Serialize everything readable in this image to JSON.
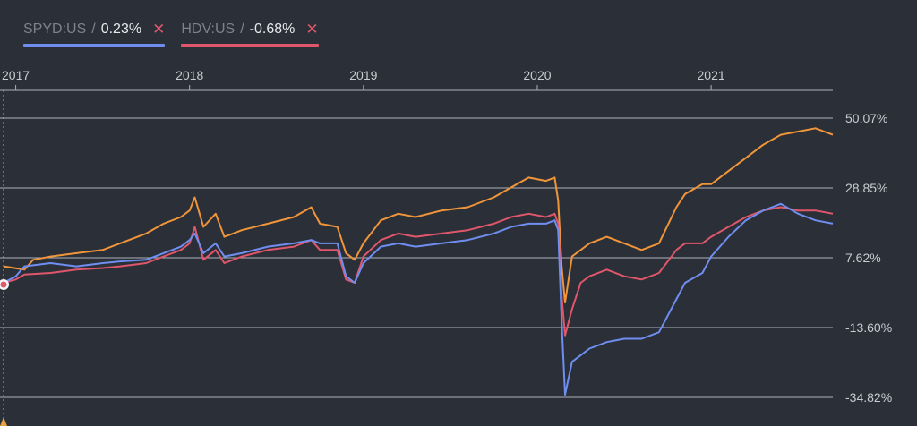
{
  "legend": [
    {
      "ticker": "SPYD:US",
      "separator": "/",
      "change": "0.23%",
      "color": "#6f8ef0",
      "remove_icon": "close-icon"
    },
    {
      "ticker": "HDV:US",
      "separator": "/",
      "change": "-0.68%",
      "color": "#e0566b",
      "remove_icon": "close-icon"
    }
  ],
  "chart_data": {
    "type": "line",
    "x_tick_labels": [
      "2017",
      "2018",
      "2019",
      "2020",
      "2021"
    ],
    "y_tick_labels": [
      "50.07%",
      "28.85%",
      "7.62%",
      "-13.60%",
      "-34.82%"
    ],
    "y_ticks": [
      50.07,
      28.85,
      7.62,
      -13.6,
      -34.82
    ],
    "ylim": [
      -34.82,
      50.07
    ],
    "xlim": [
      2016.93,
      2021.7
    ],
    "grid": "horizontal",
    "y_axis_side": "right",
    "legend_position": "top-left",
    "colors": {
      "background": "#2a2f38",
      "grid": "#aeb2b8",
      "cursor": "#e8a13c"
    },
    "series": [
      {
        "name": "",
        "color": "#f0953a",
        "x": [
          2016.93,
          2017.05,
          2017.1,
          2017.2,
          2017.35,
          2017.5,
          2017.6,
          2017.75,
          2017.85,
          2017.95,
          2018.0,
          2018.03,
          2018.08,
          2018.15,
          2018.2,
          2018.3,
          2018.45,
          2018.6,
          2018.7,
          2018.75,
          2018.85,
          2018.9,
          2018.95,
          2019.0,
          2019.1,
          2019.2,
          2019.3,
          2019.45,
          2019.6,
          2019.75,
          2019.85,
          2019.95,
          2020.05,
          2020.1,
          2020.12,
          2020.14,
          2020.16,
          2020.2,
          2020.25,
          2020.3,
          2020.4,
          2020.5,
          2020.6,
          2020.7,
          2020.8,
          2020.85,
          2020.95,
          2021.0,
          2021.1,
          2021.2,
          2021.3,
          2021.4,
          2021.5,
          2021.6,
          2021.7
        ],
        "y": [
          5.0,
          4.0,
          7.0,
          8.0,
          9.0,
          10.0,
          12.0,
          15.0,
          18.0,
          20.0,
          22.0,
          26.0,
          17.0,
          21.0,
          14.0,
          16.0,
          18.0,
          20.0,
          23.0,
          18.0,
          17.0,
          9.0,
          7.0,
          12.0,
          19.0,
          21.0,
          20.0,
          22.0,
          23.0,
          26.0,
          29.0,
          32.0,
          31.0,
          32.0,
          25.0,
          5.0,
          -6.0,
          8.0,
          10.0,
          12.0,
          14.0,
          12.0,
          10.0,
          12.0,
          23.0,
          27.0,
          30.0,
          30.0,
          34.0,
          38.0,
          42.0,
          45.0,
          46.0,
          47.0,
          45.0
        ]
      },
      {
        "name": "HDV:US",
        "color": "#e0566b",
        "x": [
          2016.93,
          2017.0,
          2017.05,
          2017.2,
          2017.35,
          2017.5,
          2017.6,
          2017.75,
          2017.85,
          2017.95,
          2018.0,
          2018.03,
          2018.08,
          2018.15,
          2018.2,
          2018.3,
          2018.45,
          2018.6,
          2018.7,
          2018.75,
          2018.85,
          2018.9,
          2018.95,
          2019.0,
          2019.1,
          2019.2,
          2019.3,
          2019.45,
          2019.6,
          2019.75,
          2019.85,
          2019.95,
          2020.05,
          2020.1,
          2020.12,
          2020.14,
          2020.16,
          2020.2,
          2020.25,
          2020.3,
          2020.4,
          2020.5,
          2020.6,
          2020.7,
          2020.8,
          2020.85,
          2020.95,
          2021.0,
          2021.1,
          2021.2,
          2021.3,
          2021.4,
          2021.5,
          2021.6,
          2021.7
        ],
        "y": [
          0.0,
          1.0,
          2.5,
          3.0,
          4.0,
          4.5,
          5.0,
          6.0,
          8.0,
          10.0,
          12.0,
          17.0,
          7.0,
          10.0,
          6.0,
          8.0,
          10.0,
          11.0,
          13.0,
          10.0,
          10.0,
          1.0,
          0.0,
          8.0,
          13.0,
          15.0,
          14.0,
          15.0,
          16.0,
          18.0,
          20.0,
          21.0,
          20.0,
          21.0,
          18.0,
          -4.0,
          -16.0,
          -8.0,
          0.0,
          2.0,
          4.0,
          2.0,
          1.0,
          3.0,
          10.0,
          12.0,
          12.0,
          14.0,
          17.0,
          20.0,
          22.0,
          23.0,
          22.0,
          22.0,
          21.0
        ]
      },
      {
        "name": "SPYD:US",
        "color": "#6f8ef0",
        "x": [
          2016.93,
          2017.0,
          2017.05,
          2017.2,
          2017.35,
          2017.5,
          2017.6,
          2017.75,
          2017.85,
          2017.95,
          2018.0,
          2018.03,
          2018.08,
          2018.15,
          2018.2,
          2018.3,
          2018.45,
          2018.6,
          2018.7,
          2018.75,
          2018.85,
          2018.9,
          2018.95,
          2019.0,
          2019.1,
          2019.2,
          2019.3,
          2019.45,
          2019.6,
          2019.75,
          2019.85,
          2019.95,
          2020.05,
          2020.1,
          2020.12,
          2020.14,
          2020.16,
          2020.2,
          2020.25,
          2020.3,
          2020.4,
          2020.5,
          2020.6,
          2020.7,
          2020.8,
          2020.85,
          2020.95,
          2021.0,
          2021.1,
          2021.2,
          2021.3,
          2021.4,
          2021.5,
          2021.6,
          2021.7
        ],
        "y": [
          0.0,
          2.0,
          5.0,
          6.0,
          5.0,
          6.0,
          6.5,
          7.0,
          9.0,
          11.0,
          13.0,
          15.0,
          9.0,
          12.0,
          8.0,
          9.0,
          11.0,
          12.0,
          13.0,
          12.0,
          12.0,
          2.0,
          0.0,
          6.0,
          11.0,
          12.0,
          11.0,
          12.0,
          13.0,
          15.0,
          17.0,
          18.0,
          18.0,
          19.0,
          16.0,
          -12.0,
          -34.0,
          -24.0,
          -22.0,
          -20.0,
          -18.0,
          -17.0,
          -17.0,
          -15.0,
          -5.0,
          0.0,
          3.0,
          8.0,
          14.0,
          19.0,
          22.0,
          24.0,
          21.0,
          19.0,
          18.0
        ]
      }
    ]
  }
}
